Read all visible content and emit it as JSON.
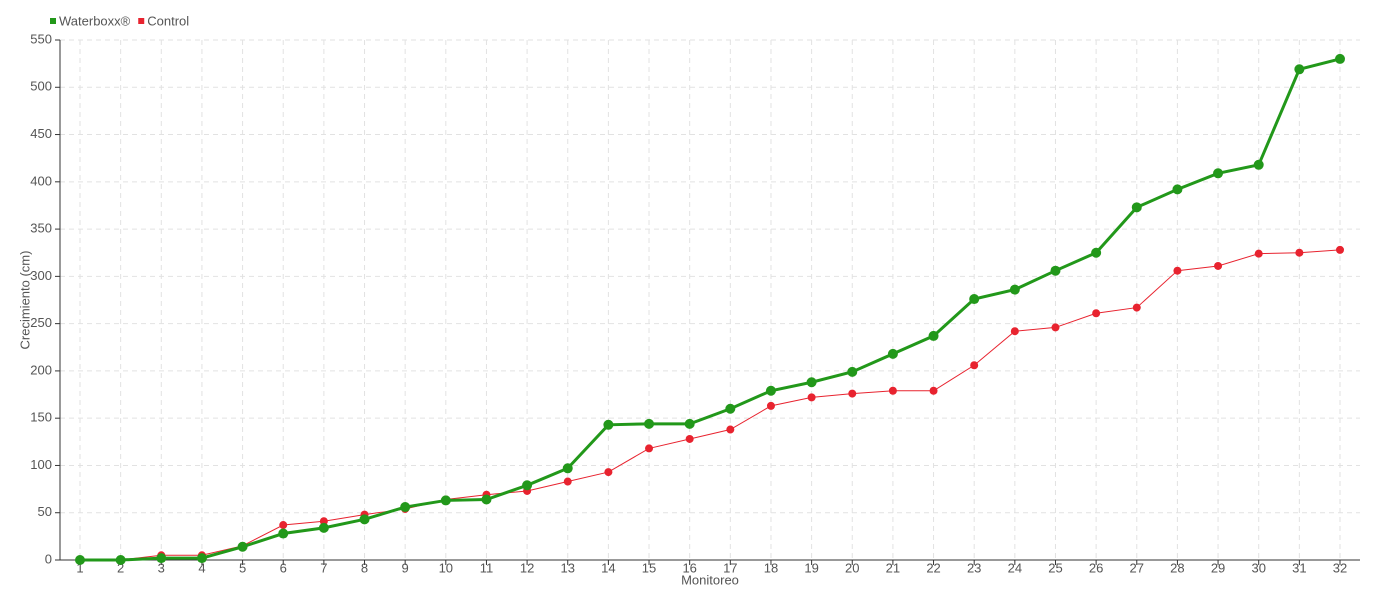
{
  "chart_data": {
    "type": "line",
    "x_label": "Monitoreo",
    "y_label": "Crecimiento (cm)",
    "categories": [
      "1",
      "2",
      "3",
      "4",
      "5",
      "6",
      "7",
      "8",
      "9",
      "10",
      "11",
      "12",
      "13",
      "14",
      "15",
      "16",
      "17",
      "18",
      "19",
      "20",
      "21",
      "22",
      "23",
      "24",
      "25",
      "26",
      "27",
      "28",
      "29",
      "30",
      "31",
      "32"
    ],
    "series": [
      {
        "name": "Waterboxx®",
        "color": "#22981a",
        "values": [
          0,
          0,
          2,
          2,
          14,
          28,
          34,
          43,
          56,
          63,
          64,
          79,
          97,
          143,
          144,
          144,
          160,
          179,
          188,
          199,
          218,
          237,
          276,
          286,
          306,
          325,
          373,
          392,
          409,
          418,
          519,
          530
        ]
      },
      {
        "name": "Control",
        "color": "#e8232f",
        "values": [
          0,
          0,
          5,
          5,
          15,
          37,
          41,
          48,
          54,
          64,
          69,
          73,
          83,
          93,
          118,
          128,
          138,
          163,
          172,
          176,
          179,
          179,
          206,
          242,
          246,
          261,
          267,
          306,
          311,
          324,
          325,
          328
        ]
      }
    ],
    "ylim": [
      0,
      550
    ],
    "yticks": [
      0,
      50,
      100,
      150,
      200,
      250,
      300,
      350,
      400,
      450,
      500,
      550
    ],
    "grid": true,
    "legend": "top-left"
  }
}
